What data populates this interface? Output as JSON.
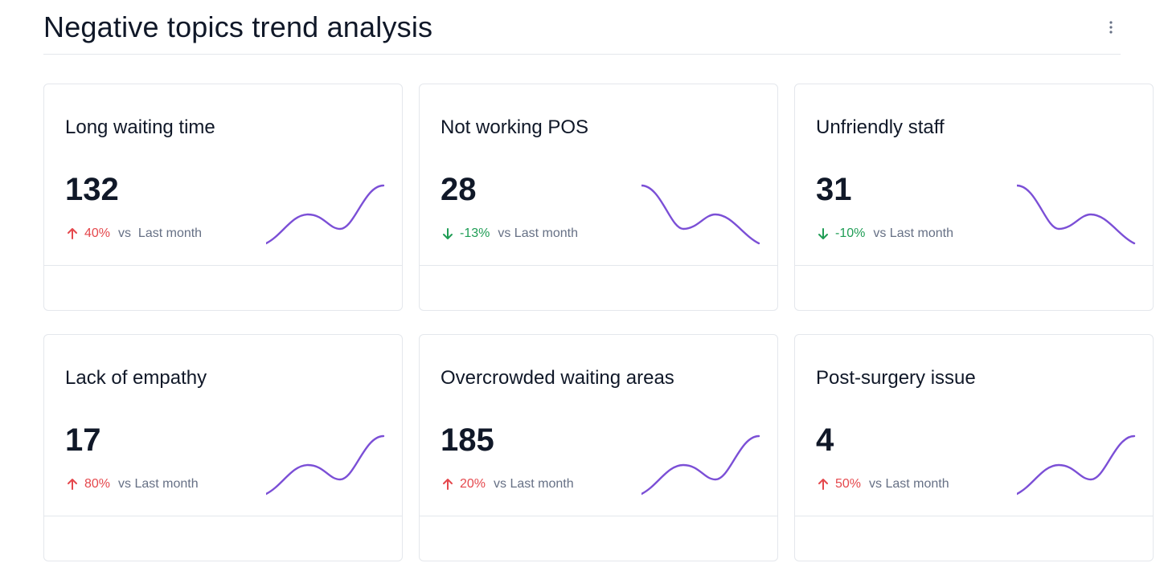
{
  "header": {
    "title": "Negative topics trend analysis",
    "menu_icon": "more-vertical-icon"
  },
  "colors": {
    "up": "#e5484d",
    "down": "#1f9d55",
    "sparkline": "#7b4fd6",
    "border": "#e4e7ec"
  },
  "comparison_label": "vs Last month",
  "cards": [
    {
      "title": "Long waiting time",
      "value": "132",
      "delta": "40%",
      "direction": "up",
      "vs": "vs  Last month",
      "trend": "up"
    },
    {
      "title": "Not working POS",
      "value": "28",
      "delta": "-13%",
      "direction": "down",
      "vs": "vs Last month",
      "trend": "down"
    },
    {
      "title": "Unfriendly staff",
      "value": "31",
      "delta": "-10%",
      "direction": "down",
      "vs": "vs Last month",
      "trend": "down"
    },
    {
      "title": "Lack of empathy",
      "value": "17",
      "delta": "80%",
      "direction": "up",
      "vs": "vs Last month",
      "trend": "up"
    },
    {
      "title": "Overcrowded waiting areas",
      "value": "185",
      "delta": "20%",
      "direction": "up",
      "vs": "vs Last month",
      "trend": "up"
    },
    {
      "title": "Post-surgery issue",
      "value": "4",
      "delta": "50%",
      "direction": "up",
      "vs": "vs Last month",
      "trend": "up"
    }
  ]
}
